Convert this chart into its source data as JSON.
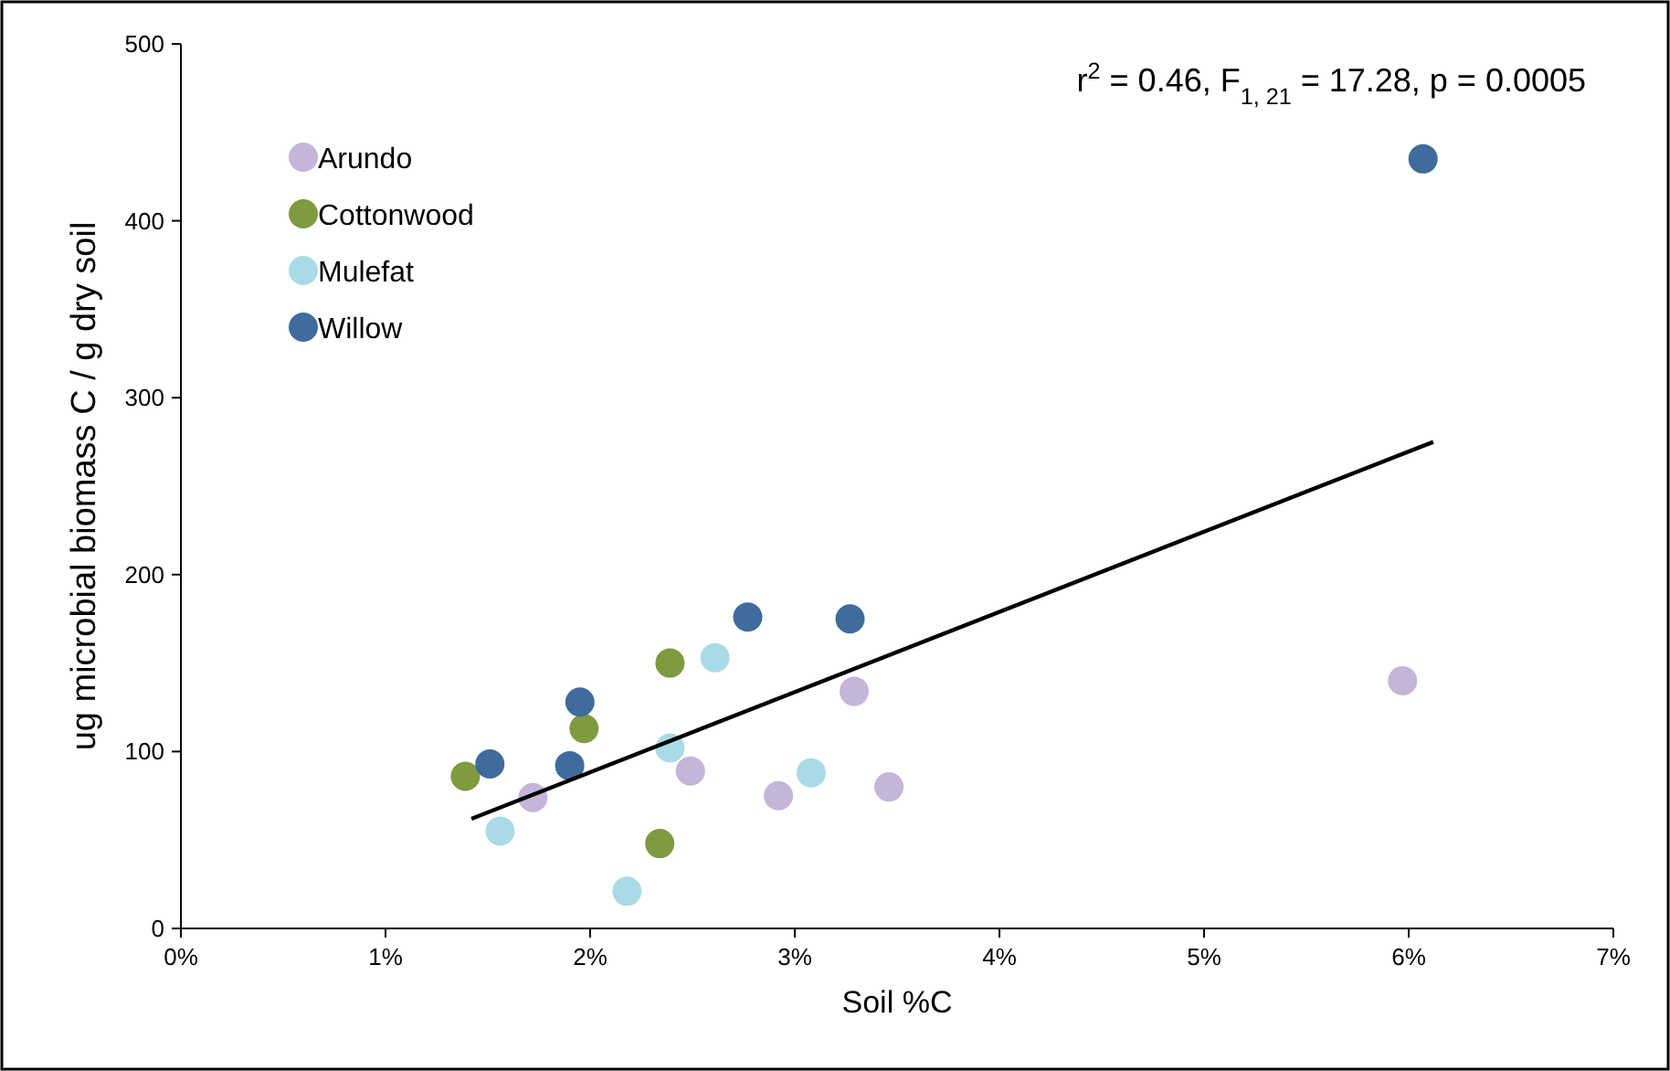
{
  "chart_data": {
    "type": "scatter",
    "xlabel": "Soil %C",
    "ylabel": "ug microbial biomass C / g dry soil",
    "annotations": [
      "r$^{2}$ = 0.46, F$_{1, 21}$ = 17.28, p = 0.0005"
    ],
    "xlim": [
      0,
      7
    ],
    "xticks": [
      {
        "value": 0,
        "label": "0%"
      },
      {
        "value": 1,
        "label": "1%"
      },
      {
        "value": 2,
        "label": "2%"
      },
      {
        "value": 3,
        "label": "3%"
      },
      {
        "value": 4,
        "label": "4%"
      },
      {
        "value": 5,
        "label": "5%"
      },
      {
        "value": 6,
        "label": "6%"
      },
      {
        "value": 7,
        "label": "7%"
      }
    ],
    "ylim": [
      0,
      500
    ],
    "yticks": [
      0,
      100,
      200,
      300,
      400,
      500
    ],
    "grid": false,
    "legend": "top left",
    "marker": "circle",
    "series": [
      {
        "name": "Arundo",
        "color": "#c5b5d9",
        "x": [
          1.72,
          2.49,
          2.92,
          3.29,
          3.46,
          5.97
        ],
        "values": [
          74,
          89,
          75,
          134,
          80,
          140
        ]
      },
      {
        "name": "Cottonwood",
        "color": "#7f9a3f",
        "x": [
          1.39,
          1.97,
          2.39,
          2.34
        ],
        "values": [
          86,
          113,
          150,
          48
        ]
      },
      {
        "name": "Mulefat",
        "color": "#a9dbe6",
        "x": [
          1.56,
          2.18,
          2.39,
          2.61,
          3.08
        ],
        "values": [
          55,
          21,
          102,
          153,
          88
        ]
      },
      {
        "name": "Willow",
        "color": "#3f6c9c",
        "x": [
          1.51,
          1.9,
          1.95,
          2.77,
          3.27,
          6.07
        ],
        "values": [
          93,
          92,
          128,
          176,
          175,
          435
        ]
      },
      {
        "type": "line",
        "color": "#000000",
        "x": [
          1.42,
          6.12
        ],
        "values": [
          62,
          275
        ],
        "marker": "none"
      }
    ]
  }
}
